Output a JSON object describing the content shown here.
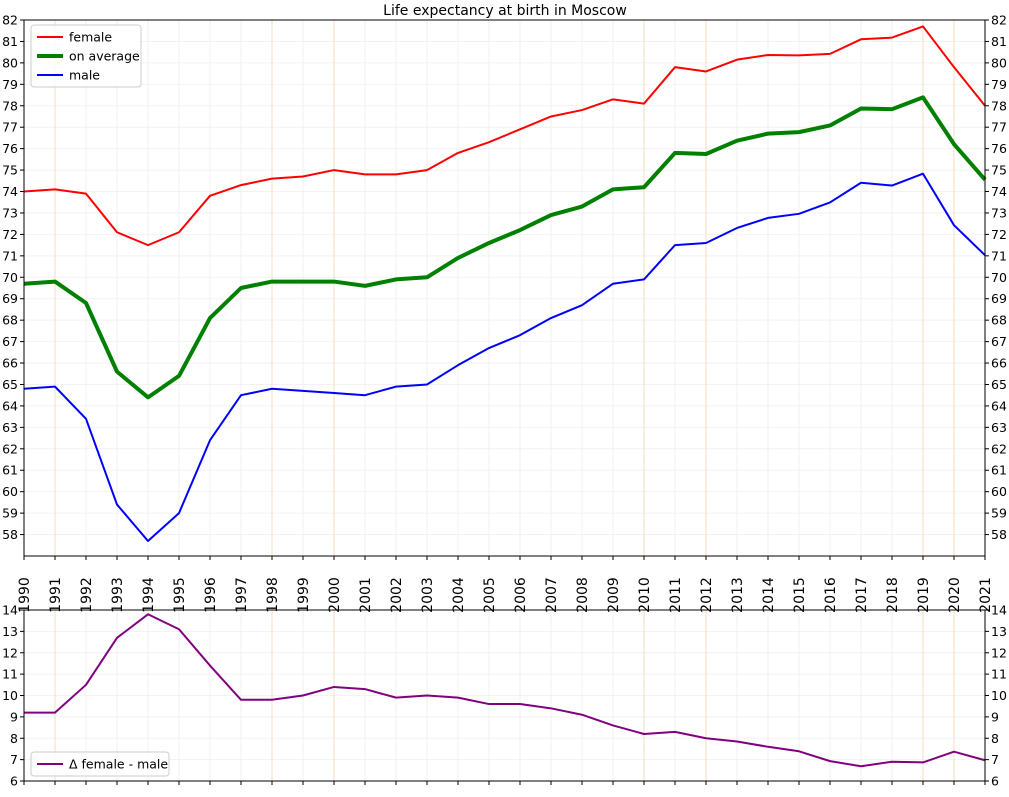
{
  "chart_data": [
    {
      "type": "line",
      "title": "Life expectancy at birth in Moscow",
      "xlabel": "",
      "ylabel": "",
      "x": [
        1990,
        1991,
        1992,
        1993,
        1994,
        1995,
        1996,
        1997,
        1998,
        1999,
        2000,
        2001,
        2002,
        2003,
        2004,
        2005,
        2006,
        2007,
        2008,
        2009,
        2010,
        2011,
        2012,
        2013,
        2014,
        2015,
        2016,
        2017,
        2018,
        2019,
        2020,
        2021
      ],
      "xlim": [
        1990,
        2021
      ],
      "ylim": [
        57,
        82
      ],
      "yticks": [
        58,
        59,
        60,
        61,
        62,
        63,
        64,
        65,
        66,
        67,
        68,
        69,
        70,
        71,
        72,
        73,
        74,
        75,
        76,
        77,
        78,
        79,
        80,
        81,
        82
      ],
      "y_ticks_both_sides": true,
      "grid": true,
      "legend_position": "upper-left",
      "series": [
        {
          "name": "female",
          "color": "#ff0000",
          "values": [
            74.0,
            74.1,
            73.9,
            72.1,
            71.5,
            72.1,
            73.8,
            74.3,
            74.6,
            74.7,
            75.0,
            74.8,
            74.8,
            75.0,
            75.8,
            76.3,
            76.9,
            77.5,
            77.8,
            78.3,
            78.1,
            79.8,
            79.6,
            80.15,
            80.37,
            80.35,
            80.42,
            81.1,
            81.18,
            81.7,
            79.8,
            78.0
          ]
        },
        {
          "name": "on average",
          "color": "#008000",
          "values": [
            69.7,
            69.8,
            68.8,
            65.6,
            64.4,
            65.4,
            68.1,
            69.5,
            69.8,
            69.8,
            69.8,
            69.6,
            69.9,
            70.0,
            70.9,
            71.6,
            72.2,
            72.9,
            73.3,
            74.1,
            74.2,
            75.8,
            75.75,
            76.37,
            76.7,
            76.77,
            77.08,
            77.87,
            77.84,
            78.39,
            76.21,
            74.55
          ]
        },
        {
          "name": "male",
          "color": "#0000ff",
          "values": [
            64.8,
            64.9,
            63.4,
            59.4,
            57.7,
            59.0,
            62.4,
            64.5,
            64.8,
            64.7,
            64.6,
            64.5,
            64.9,
            65.0,
            65.9,
            66.7,
            67.3,
            68.1,
            68.7,
            69.7,
            69.9,
            71.5,
            71.6,
            72.3,
            72.77,
            72.96,
            73.49,
            74.41,
            74.28,
            74.83,
            72.43,
            71.03
          ]
        }
      ]
    },
    {
      "type": "line",
      "title": "",
      "xlabel": "",
      "ylabel": "",
      "x": [
        1990,
        1991,
        1992,
        1993,
        1994,
        1995,
        1996,
        1997,
        1998,
        1999,
        2000,
        2001,
        2002,
        2003,
        2004,
        2005,
        2006,
        2007,
        2008,
        2009,
        2010,
        2011,
        2012,
        2013,
        2014,
        2015,
        2016,
        2017,
        2018,
        2019,
        2020,
        2021
      ],
      "xlim": [
        1990,
        2021
      ],
      "ylim": [
        6,
        14
      ],
      "yticks": [
        6,
        7,
        8,
        9,
        10,
        11,
        12,
        13,
        14
      ],
      "y_ticks_both_sides": true,
      "grid": true,
      "legend_position": "lower-left",
      "series": [
        {
          "name": "Δ female - male",
          "color": "#800080",
          "values": [
            9.2,
            9.2,
            10.5,
            12.7,
            13.8,
            13.1,
            11.4,
            9.8,
            9.8,
            10.0,
            10.4,
            10.3,
            9.9,
            10.0,
            9.9,
            9.6,
            9.6,
            9.4,
            9.1,
            8.6,
            8.2,
            8.3,
            8.0,
            7.85,
            7.6,
            7.39,
            6.93,
            6.69,
            6.9,
            6.87,
            7.37,
            6.97
          ]
        }
      ]
    }
  ]
}
